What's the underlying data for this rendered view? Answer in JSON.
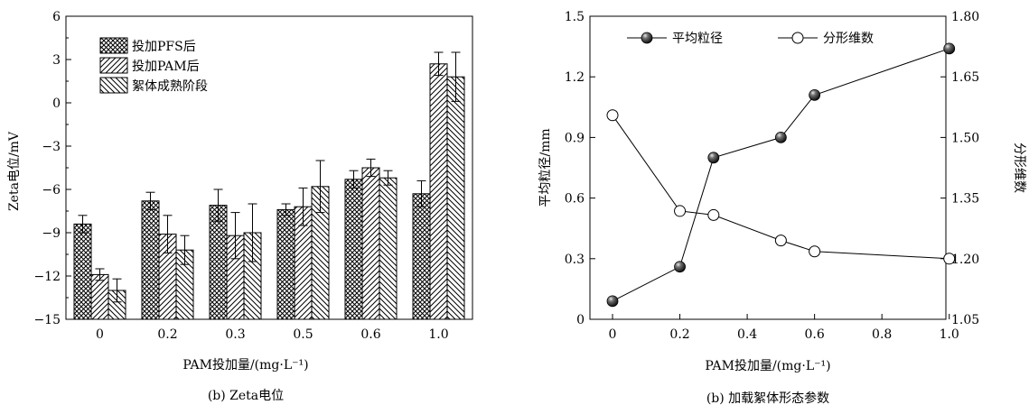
{
  "chart_data": [
    {
      "type": "bar",
      "caption": "(b) Zeta电位",
      "xlabel": "PAM投加量/(mg·L⁻¹)",
      "ylabel": "Zeta电位/mV",
      "ylim": [
        -15,
        6
      ],
      "yticks": [
        6,
        3,
        0,
        -3,
        -6,
        -9,
        -12,
        -15
      ],
      "categories": [
        "0",
        "0.2",
        "0.3",
        "0.5",
        "0.6",
        "1.0"
      ],
      "legend_position": "top-left",
      "series": [
        {
          "name": "投加PFS后",
          "pattern": "crosshatch",
          "values": [
            -8.4,
            -6.8,
            -7.1,
            -7.4,
            -5.3,
            -6.3
          ],
          "errors": [
            0.6,
            0.6,
            1.1,
            0.4,
            0.6,
            0.9
          ]
        },
        {
          "name": "投加PAM后",
          "pattern": "forward-diagonal",
          "values": [
            -11.9,
            -9.1,
            -9.2,
            -7.2,
            -4.5,
            2.7
          ],
          "errors": [
            0.4,
            1.3,
            1.6,
            1.3,
            0.6,
            0.8
          ]
        },
        {
          "name": "絮体成熟阶段",
          "pattern": "back-diagonal",
          "values": [
            -13.0,
            -10.2,
            -9.0,
            -5.8,
            -5.2,
            1.8
          ],
          "errors": [
            0.8,
            1.0,
            2.0,
            1.8,
            0.5,
            1.7
          ]
        }
      ]
    },
    {
      "type": "line",
      "caption": "(b) 加载絮体形态参数",
      "xlabel": "PAM投加量/(mg·L⁻¹)",
      "ylabel_left": "平均粒径/mm",
      "ylabel_right": "分形维数",
      "xlim": [
        0,
        1.0
      ],
      "xticks": [
        "0",
        "0.2",
        "0.4",
        "0.6",
        "0.8",
        "1.0"
      ],
      "ylim_left": [
        0,
        1.5
      ],
      "yticks_left": [
        "0",
        "0.3",
        "0.6",
        "0.9",
        "1.2",
        "1.5"
      ],
      "ylim_right": [
        1.05,
        1.8
      ],
      "yticks_right": [
        "1.05",
        "1.20",
        "1.35",
        "1.50",
        "1.65",
        "1.80"
      ],
      "legend_position": "top",
      "series": [
        {
          "name": "平均粒径",
          "axis": "left",
          "marker": "filled-sphere",
          "x": [
            0,
            0.2,
            0.3,
            0.5,
            0.6,
            1.0
          ],
          "y": [
            0.09,
            0.26,
            0.8,
            0.9,
            1.11,
            1.34
          ]
        },
        {
          "name": "分形维数",
          "axis": "right",
          "marker": "open-circle",
          "x": [
            0,
            0.2,
            0.3,
            0.5,
            0.6,
            1.0
          ],
          "y": [
            1.555,
            1.318,
            1.308,
            1.245,
            1.218,
            1.2
          ]
        }
      ]
    }
  ]
}
